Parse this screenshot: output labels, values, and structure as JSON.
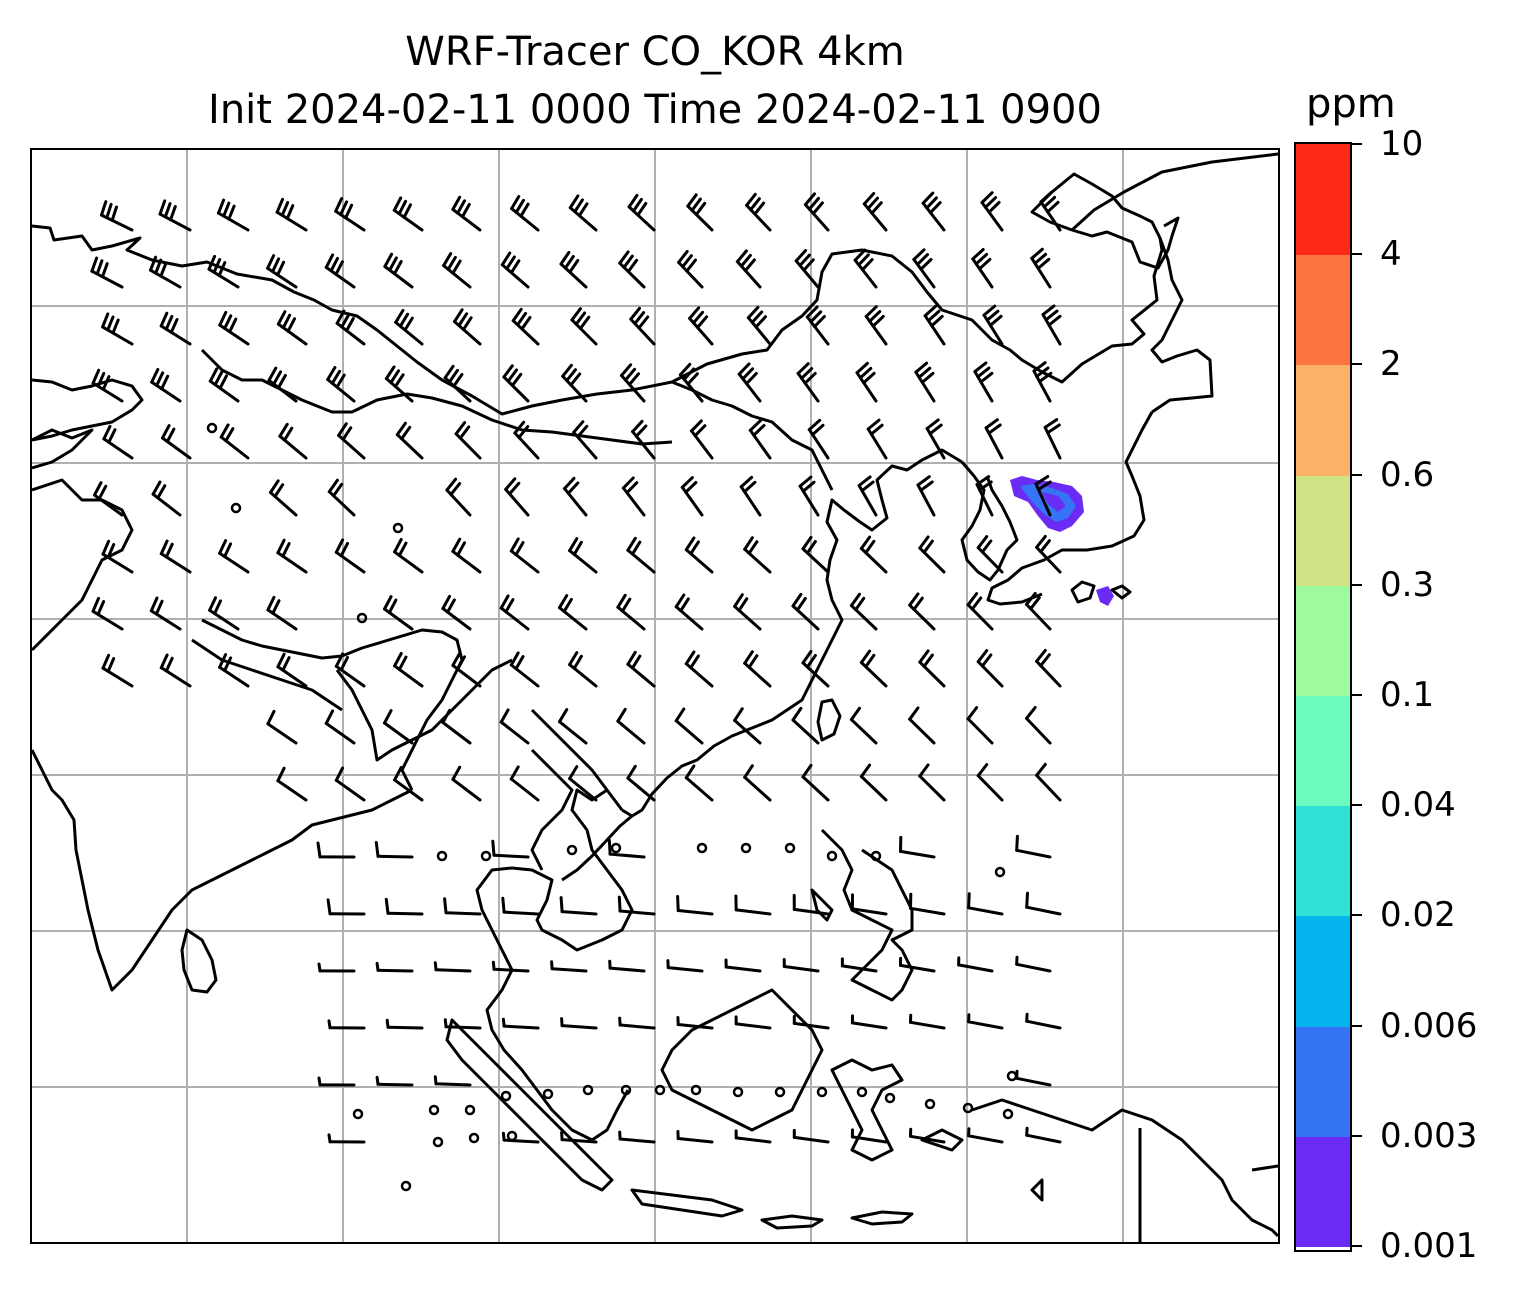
{
  "title": {
    "line1": "WRF-Tracer CO_KOR 4km",
    "line2": "Init 2024-02-11 0000 Time 2024-02-11 0900"
  },
  "colorbar": {
    "units": "ppm",
    "levels": [
      "0.001",
      "0.003",
      "0.006",
      "0.02",
      "0.04",
      "0.1",
      "0.3",
      "0.6",
      "2",
      "4",
      "10"
    ],
    "colors": [
      "#6a2cf5",
      "#3574f4",
      "#04b4ec",
      "#31e1d8",
      "#6bfcc0",
      "#9dfa9d",
      "#cfe286",
      "#fcb266",
      "#fc743f",
      "#fc2a17"
    ]
  },
  "map": {
    "projection": "lambert-conformal",
    "coastlines": true,
    "gridlines": true,
    "tracer_field": "CO_KOR",
    "plume_region": "Korea / Sea of Japan",
    "plume_levels": [
      "0.001",
      "0.003",
      "0.006"
    ],
    "wind_barbs": true
  }
}
